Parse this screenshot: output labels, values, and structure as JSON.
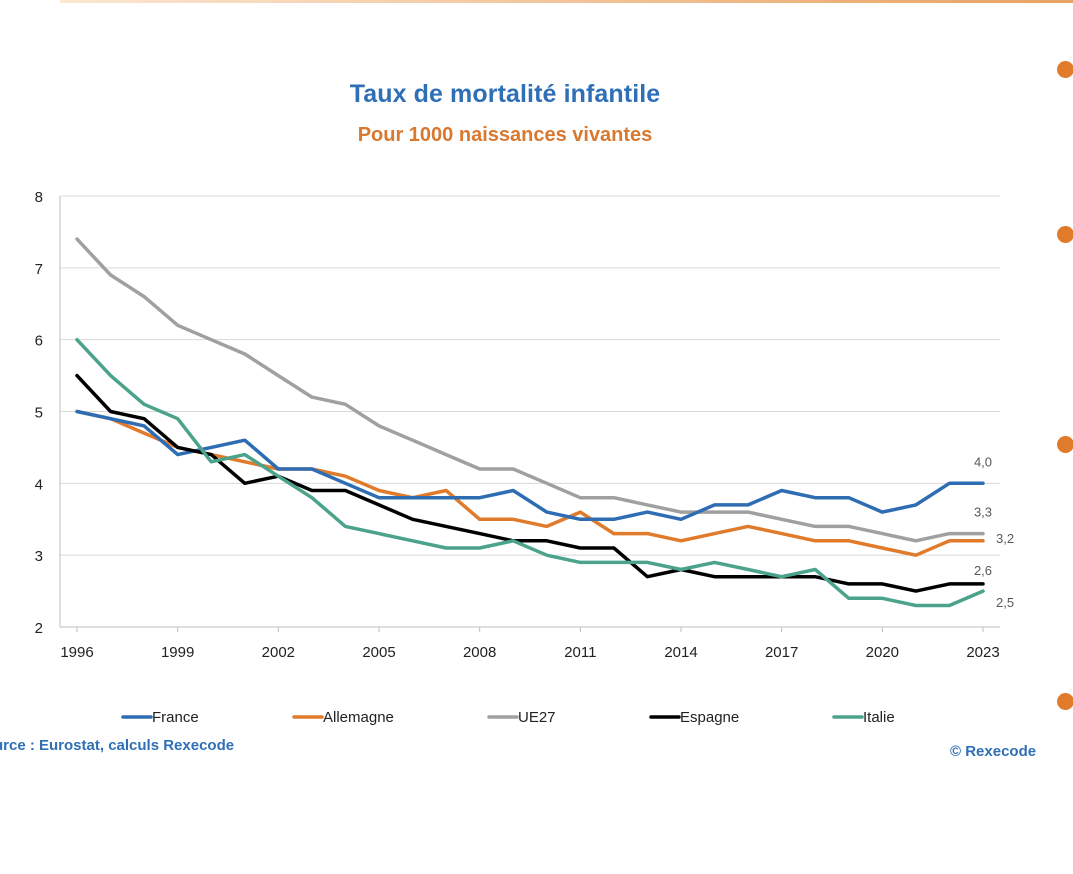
{
  "chart_data": {
    "type": "line",
    "title": "Taux de mortalité infantile",
    "subtitle": "Pour 1000 naissances vivantes",
    "x": [
      1996,
      1997,
      1998,
      1999,
      2000,
      2001,
      2002,
      2003,
      2004,
      2005,
      2006,
      2007,
      2008,
      2009,
      2010,
      2011,
      2012,
      2013,
      2014,
      2015,
      2016,
      2017,
      2018,
      2019,
      2020,
      2021,
      2022,
      2023
    ],
    "x_tick_labels": [
      "1996",
      "1999",
      "2002",
      "2005",
      "2008",
      "2011",
      "2014",
      "2017",
      "2020",
      "2023"
    ],
    "y_tick_labels": [
      "2",
      "3",
      "4",
      "5",
      "6",
      "7",
      "8"
    ],
    "ylim": [
      2,
      8
    ],
    "grid": true,
    "legend_position": "bottom",
    "series": [
      {
        "name": "France",
        "color": "#2e6db4",
        "values": [
          5.0,
          4.9,
          4.8,
          4.4,
          4.5,
          4.6,
          4.2,
          4.2,
          4.0,
          3.8,
          3.8,
          3.8,
          3.8,
          3.9,
          3.6,
          3.5,
          3.5,
          3.6,
          3.5,
          3.7,
          3.7,
          3.9,
          3.8,
          3.8,
          3.6,
          3.7,
          4.0,
          4.0
        ],
        "end_label": "4,0"
      },
      {
        "name": "Allemagne",
        "color": "#e07b2c",
        "values": [
          5.0,
          4.9,
          4.7,
          4.5,
          4.4,
          4.3,
          4.2,
          4.2,
          4.1,
          3.9,
          3.8,
          3.9,
          3.5,
          3.5,
          3.4,
          3.6,
          3.3,
          3.3,
          3.2,
          3.3,
          3.4,
          3.3,
          3.2,
          3.2,
          3.1,
          3.0,
          3.2,
          3.2
        ],
        "end_label": "3,2"
      },
      {
        "name": "UE27",
        "color": "#a0a0a0",
        "values": [
          7.4,
          6.9,
          6.6,
          6.2,
          6.0,
          5.8,
          5.5,
          5.2,
          5.1,
          4.8,
          4.6,
          4.4,
          4.2,
          4.2,
          4.0,
          3.8,
          3.8,
          3.7,
          3.6,
          3.6,
          3.6,
          3.5,
          3.4,
          3.4,
          3.3,
          3.2,
          3.3,
          3.3
        ],
        "end_label": "3,3"
      },
      {
        "name": "Espagne",
        "color": "#000000",
        "values": [
          5.5,
          5.0,
          4.9,
          4.5,
          4.4,
          4.0,
          4.1,
          3.9,
          3.9,
          3.7,
          3.5,
          3.4,
          3.3,
          3.2,
          3.2,
          3.1,
          3.1,
          2.7,
          2.8,
          2.7,
          2.7,
          2.7,
          2.7,
          2.6,
          2.6,
          2.5,
          2.6,
          2.6
        ],
        "end_label": "2,6"
      },
      {
        "name": "Italie",
        "color": "#4aa38a",
        "values": [
          6.0,
          5.5,
          5.1,
          4.9,
          4.3,
          4.4,
          4.1,
          3.8,
          3.4,
          3.3,
          3.2,
          3.1,
          3.1,
          3.2,
          3.0,
          2.9,
          2.9,
          2.9,
          2.8,
          2.9,
          2.8,
          2.7,
          2.8,
          2.4,
          2.4,
          2.3,
          2.3,
          2.5
        ],
        "end_label": "2,5"
      }
    ]
  },
  "footer": {
    "source": "urce : Eurostat, calculs Rexecode",
    "credit": "© Rexecode"
  },
  "colors": {
    "title": "#2f6fb6",
    "subtitle": "#d9782f",
    "bullet": "#e07b2c",
    "grid": "#d9d9d9"
  }
}
